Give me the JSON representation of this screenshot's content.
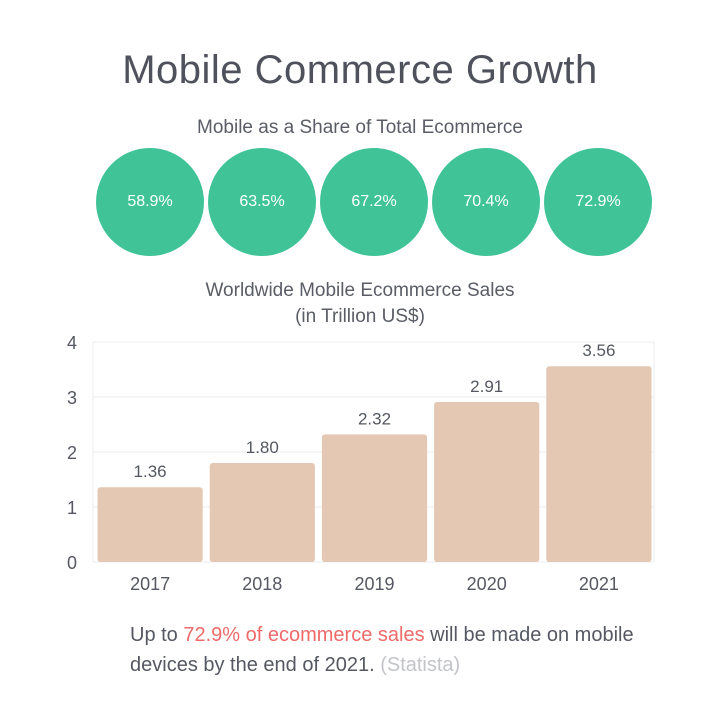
{
  "title": "Mobile Commerce Growth",
  "share": {
    "title": "Mobile as a Share of Total Ecommerce",
    "color": "#40c497",
    "items": [
      {
        "year": "2017",
        "value": 58.9,
        "label": "58.9%"
      },
      {
        "year": "2018",
        "value": 63.5,
        "label": "63.5%"
      },
      {
        "year": "2019",
        "value": 67.2,
        "label": "67.2%"
      },
      {
        "year": "2020",
        "value": 70.4,
        "label": "70.4%"
      },
      {
        "year": "2021",
        "value": 72.9,
        "label": "72.9%"
      }
    ]
  },
  "chart_data": {
    "type": "bar",
    "title": "Worldwide Mobile Ecommerce Sales",
    "subtitle": "(in Trillion US$)",
    "categories": [
      "2017",
      "2018",
      "2019",
      "2020",
      "2021"
    ],
    "values": [
      1.36,
      1.8,
      2.32,
      2.91,
      3.56
    ],
    "value_labels": [
      "1.36",
      "1.80",
      "2.32",
      "2.91",
      "3.56"
    ],
    "ylim": [
      0,
      4
    ],
    "yticks": [
      "0",
      "1",
      "2",
      "3",
      "4"
    ],
    "grid": true,
    "bar_color": "#e4c8b3",
    "xlabel": "",
    "ylabel": ""
  },
  "footer": {
    "pre": "Up to ",
    "highlight": "72.9% of ecommerce sales",
    "post": " will be made on mobile devices by the end of 2021.",
    "source": "(Statista)",
    "highlight_color": "#ef6a6a"
  }
}
